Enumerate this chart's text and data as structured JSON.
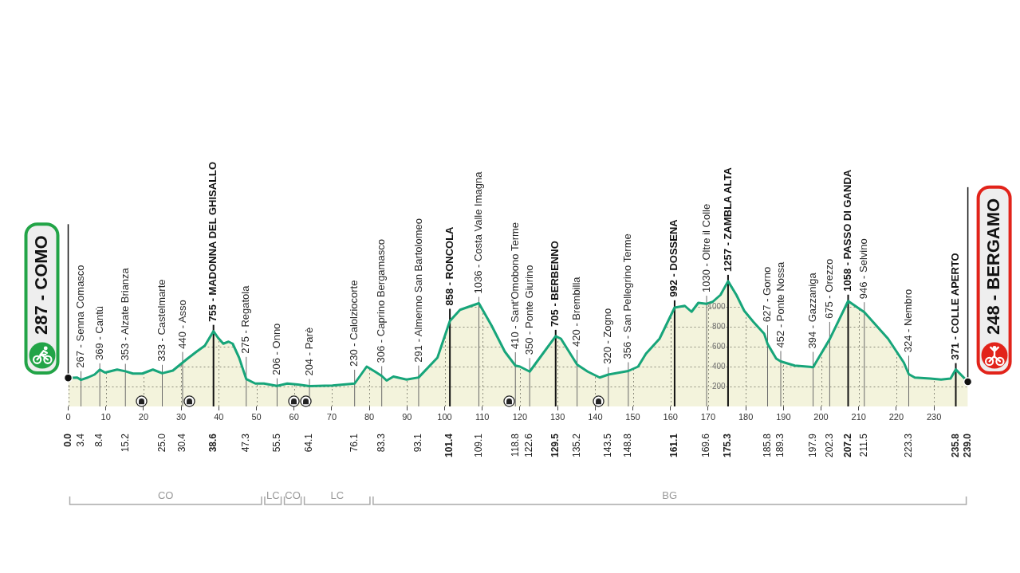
{
  "chart_data": {
    "type": "area",
    "color": "#17a57a",
    "x": [
      0,
      2.4,
      3.4,
      5.2,
      7.0,
      8.4,
      9.8,
      13.0,
      15.2,
      17.2,
      19.7,
      22.5,
      25.0,
      27.8,
      30.4,
      31.7,
      34.1,
      36.3,
      38.6,
      39.8,
      41.2,
      42.6,
      43.7,
      45.4,
      47.3,
      49.7,
      52.0,
      55.5,
      58.2,
      61.0,
      64.1,
      70.2,
      76.1,
      79.3,
      81.5,
      83.3,
      84.6,
      86.4,
      89.9,
      93.1,
      98.1,
      101.4,
      104.1,
      109.1,
      112.5,
      116.0,
      118.8,
      120.0,
      122.6,
      125.9,
      129.5,
      130.9,
      135.2,
      138.0,
      141.2,
      143.5,
      148.8,
      151.4,
      153.5,
      157.1,
      161.1,
      163.8,
      165.6,
      167.4,
      169.6,
      171.2,
      173.3,
      175.3,
      177.5,
      179.6,
      182.0,
      184.9,
      185.8,
      188.1,
      189.3,
      193.0,
      197.9,
      202.3,
      207.2,
      211.5,
      217.8,
      222.0,
      223.3,
      224.9,
      229.0,
      231.9,
      234.4,
      235.8,
      239.0
    ],
    "values": [
      287,
      290,
      267,
      290,
      320,
      369,
      340,
      370,
      353,
      330,
      330,
      370,
      333,
      360,
      440,
      480,
      550,
      610,
      755,
      690,
      630,
      650,
      630,
      490,
      275,
      230,
      230,
      206,
      230,
      220,
      204,
      210,
      230,
      400,
      350,
      306,
      260,
      300,
      270,
      291,
      490,
      858,
      970,
      1036,
      810,
      550,
      410,
      400,
      350,
      520,
      705,
      680,
      420,
      350,
      290,
      320,
      356,
      400,
      530,
      680,
      992,
      1010,
      950,
      1040,
      1030,
      1050,
      1120,
      1257,
      1120,
      960,
      850,
      730,
      627,
      480,
      452,
      410,
      394,
      675,
      1058,
      946,
      680,
      440,
      324,
      290,
      280,
      270,
      280,
      371,
      248
    ],
    "xlim": [
      0,
      239
    ],
    "ylim": [
      0,
      1400
    ],
    "xticks": [
      0,
      10,
      20,
      30,
      40,
      50,
      60,
      70,
      80,
      90,
      100,
      110,
      120,
      130,
      140,
      150,
      160,
      170,
      180,
      190,
      200,
      210,
      220,
      230
    ],
    "yticks": [
      200,
      400,
      600,
      800,
      1000
    ],
    "x2lim": [
      0,
      239
    ],
    "x2ticks": [
      {
        "value": 0,
        "label": "0.0"
      },
      3.4,
      8.4,
      15.2,
      {
        "value": 25,
        "label": "25.0"
      },
      30.4,
      38.6,
      47.3,
      55.5,
      64.1,
      76.1,
      83.3,
      93.1,
      101.4,
      109.1,
      118.8,
      122.6,
      129.5,
      135.2,
      143.5,
      148.8,
      161.1,
      169.6,
      175.3,
      185.8,
      189.3,
      197.9,
      202.3,
      207.2,
      211.5,
      223.3,
      235.8,
      {
        "value": 239,
        "label": "239.0"
      }
    ],
    "grid": true,
    "annotations": [
      {
        "text": "287 - COMO",
        "x": 0,
        "y": 287
      },
      {
        "text": "267 - Senna Comasco",
        "x": 3.4,
        "y": 267
      },
      {
        "text": "369 - Cantù",
        "x": 8.4,
        "y": 369
      },
      {
        "text": "353 - Alzate Brianza",
        "x": 15.2,
        "y": 353
      },
      {
        "text": "333 - Castelmarte",
        "x": 25.0,
        "y": 333
      },
      {
        "text": "440 - Asso",
        "x": 30.4,
        "y": 440
      },
      {
        "text": "755 - MADONNA DEL GHISALLO",
        "x": 38.6,
        "y": 755
      },
      {
        "text": "275 - Regatola",
        "x": 47.3,
        "y": 275
      },
      {
        "text": "206 - Onno",
        "x": 55.5,
        "y": 206
      },
      {
        "text": "204 - Parè",
        "x": 64.1,
        "y": 204
      },
      {
        "text": "230 - Calolziocorte",
        "x": 76.1,
        "y": 230
      },
      {
        "text": "306 - Caprino Bergamasco",
        "x": 83.3,
        "y": 306
      },
      {
        "text": "291 - Almenno San Bartolomeo",
        "x": 93.1,
        "y": 291
      },
      {
        "text": "858 - RONCOLA",
        "x": 101.4,
        "y": 858
      },
      {
        "text": "1036 - Costa Valle Imagna",
        "x": 109.1,
        "y": 1036
      },
      {
        "text": "410 - Sant'Omobono Terme",
        "x": 118.8,
        "y": 410
      },
      {
        "text": "350 - Ponte Giurino",
        "x": 122.6,
        "y": 350
      },
      {
        "text": "705 - BERBENNO",
        "x": 129.5,
        "y": 705
      },
      {
        "text": "420 - Brembilla",
        "x": 135.2,
        "y": 420
      },
      {
        "text": "320 - Zogno",
        "x": 143.5,
        "y": 320
      },
      {
        "text": "356 - San Pellegrino Terme",
        "x": 148.8,
        "y": 356
      },
      {
        "text": "992 - DOSSENA",
        "x": 161.1,
        "y": 992
      },
      {
        "text": "1030 - Oltre il Colle",
        "x": 169.6,
        "y": 1030
      },
      {
        "text": "1257 - ZAMBLA ALTA",
        "x": 175.3,
        "y": 1257
      },
      {
        "text": "627 - Gorno",
        "x": 185.8,
        "y": 627
      },
      {
        "text": "452 - Ponte Nossa",
        "x": 189.3,
        "y": 452
      },
      {
        "text": "394 - Gazzaniga",
        "x": 197.9,
        "y": 394
      },
      {
        "text": "675 - Orezzo",
        "x": 202.3,
        "y": 675
      },
      {
        "text": "1058 - PASSO DI GANDA",
        "x": 207.2,
        "y": 1058
      },
      {
        "text": "946 - Selvino",
        "x": 211.5,
        "y": 946
      },
      {
        "text": "324 - Nembro",
        "x": 223.3,
        "y": 324
      },
      {
        "text": "371 - COLLE APERTO",
        "x": 235.8,
        "y": 371
      },
      {
        "text": "248 - BERGAMO",
        "x": 239,
        "y": 248
      },
      "CO",
      "LC",
      "CO",
      "LC",
      "BG"
    ]
  }
}
